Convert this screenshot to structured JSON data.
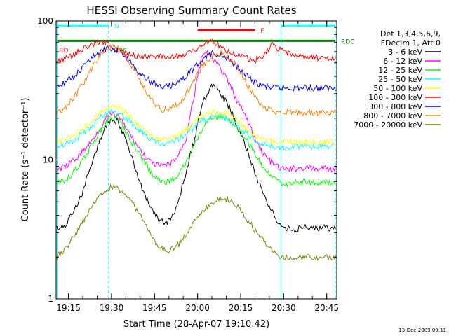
{
  "chart_data": {
    "type": "line",
    "title": "HESSI Observing Summary Count Rates",
    "xlabel": "Start Time (28-Apr-07 19:10:42)",
    "ylabel": "Count Rate (s⁻¹ detector⁻¹)",
    "y_scale": "log",
    "ylim": [
      1,
      100
    ],
    "xlim": [
      "19:10:42",
      "20:48:30"
    ],
    "x_ticks": [
      "19:15",
      "19:30",
      "19:45",
      "20:00",
      "20:15",
      "20:30",
      "20:45"
    ],
    "y_ticks": [
      "1",
      "10",
      "100"
    ],
    "legend_title": [
      "Det 1,3,4,5,6,9,",
      "FDecim 1, Att 0"
    ],
    "legend_position": "right",
    "footer": "13-Dec-2009 09:11",
    "time_axis": [
      "19:11",
      "19:14",
      "19:17",
      "19:20",
      "19:23",
      "19:26",
      "19:29",
      "19:32",
      "19:35",
      "19:38",
      "19:41",
      "19:44",
      "19:47",
      "19:50",
      "19:53",
      "19:56",
      "19:59",
      "20:02",
      "20:05",
      "20:08",
      "20:11",
      "20:14",
      "20:17",
      "20:20",
      "20:23",
      "20:26",
      "20:29",
      "20:32",
      "20:35",
      "20:38",
      "20:41",
      "20:44",
      "20:47"
    ],
    "series": [
      {
        "name": "3 - 6 keV",
        "color": "#000000",
        "values": [
          3.2,
          3.4,
          4.3,
          5.8,
          9,
          14,
          19,
          19,
          14,
          9,
          5.8,
          4.3,
          3.6,
          3.6,
          4.6,
          8,
          14,
          26,
          35,
          30,
          24,
          17,
          12,
          8,
          5.5,
          4.2,
          3.3,
          3.2,
          3.2,
          3.3,
          3.2,
          3.3,
          3.2
        ]
      },
      {
        "name": "6 - 12 keV",
        "color": "#ff00ff",
        "values": [
          8.5,
          9,
          10,
          11.5,
          13.5,
          17,
          21,
          21,
          17,
          13.5,
          11,
          9.5,
          9,
          9.2,
          10.5,
          14,
          30,
          60,
          55,
          45,
          35,
          26,
          20,
          14,
          11,
          9.5,
          8.6,
          8.6,
          8.7,
          8.8,
          8.6,
          8.7,
          8.6
        ]
      },
      {
        "name": "12 - 25 keV",
        "color": "#00ff00",
        "values": [
          6.8,
          7.2,
          8.2,
          10,
          12.5,
          16,
          20,
          20,
          16,
          12.5,
          10,
          8,
          7,
          7,
          7.8,
          9.5,
          13,
          17,
          20,
          20.5,
          19.5,
          17,
          14,
          11,
          8.5,
          7.5,
          6.8,
          6.8,
          6.9,
          7,
          6.8,
          6.9,
          6.8
        ]
      },
      {
        "name": "25 - 50 keV",
        "color": "#00ffff",
        "values": [
          12.5,
          13,
          14,
          15.5,
          17.5,
          20,
          22,
          22,
          20,
          17.5,
          15.5,
          14,
          13,
          13,
          14,
          15.5,
          17.5,
          19.5,
          20.5,
          20.5,
          19.5,
          17.5,
          15.5,
          14,
          13,
          12.5,
          12.5,
          12.5,
          12.5,
          12.5,
          12.5,
          12.5,
          12.5
        ]
      },
      {
        "name": "50 - 100 keV",
        "color": "#ffff00",
        "values": [
          13.5,
          14,
          15,
          16.5,
          19,
          22,
          24,
          24,
          22,
          19,
          16.5,
          15,
          14,
          14,
          15,
          16.5,
          19,
          21,
          22,
          22,
          21,
          19,
          16.5,
          15,
          14,
          13.5,
          13.5,
          13.5,
          13.5,
          13.5,
          13.5,
          13.5,
          13.5
        ]
      },
      {
        "name": "100 - 300 keV",
        "color": "#ff0000",
        "values": [
          50,
          53,
          58,
          63,
          68,
          70,
          68,
          62,
          58,
          56,
          55,
          55,
          55,
          55,
          56,
          58,
          62,
          68,
          72,
          66,
          60,
          56,
          54,
          52,
          56,
          68,
          62,
          58,
          56,
          55,
          54,
          54,
          54
        ]
      },
      {
        "name": "300 - 800 keV",
        "color": "#0000ff",
        "values": [
          34,
          36,
          40,
          46,
          53,
          60,
          64,
          62,
          55,
          47,
          40,
          36,
          34,
          34,
          36,
          40,
          46,
          53,
          58,
          58,
          53,
          46,
          40,
          36,
          34,
          33,
          33,
          33,
          33,
          33,
          33,
          33,
          33
        ]
      },
      {
        "name": "800 - 7000 keV",
        "color": "#ff8000",
        "values": [
          22,
          24,
          28,
          35,
          45,
          57,
          65,
          64,
          55,
          44,
          34,
          27,
          23,
          23,
          25,
          30,
          38,
          48,
          56,
          58,
          55,
          46,
          36,
          28,
          24,
          22.5,
          22,
          22,
          22,
          22,
          22,
          22,
          22
        ]
      },
      {
        "name": "7000 - 20000 keV",
        "color": "#808000",
        "values": [
          2,
          2.3,
          2.8,
          3.6,
          4.6,
          5.6,
          6.3,
          6.3,
          5.6,
          4.6,
          3.6,
          2.8,
          2.3,
          2.2,
          2.4,
          2.9,
          3.6,
          4.3,
          4.9,
          5.3,
          5.2,
          4.6,
          3.8,
          3.1,
          2.6,
          2.3,
          2,
          2,
          2,
          2,
          2,
          2,
          2
        ]
      }
    ],
    "status_bars": [
      {
        "label": "N",
        "color": "#00ffff",
        "y": 93,
        "start": "19:11",
        "end": "19:29"
      },
      {
        "label": "",
        "color": "#00ffff",
        "y": 93,
        "start": "20:29",
        "end": "20:48"
      },
      {
        "label": "F",
        "color": "#ff0000",
        "y": 86,
        "start": "20:00",
        "end": "20:20"
      },
      {
        "label": "RDC",
        "color": "#008000",
        "y": 72,
        "start": "19:11",
        "end": "20:48"
      }
    ],
    "extra_labels": [
      {
        "text": "RD",
        "color": "#ff0000",
        "x": "19:11",
        "y": 62
      },
      {
        "text": "RDC",
        "color": "#008000",
        "x": "19:30",
        "y": 62
      }
    ],
    "vertical_lines": [
      {
        "time": "19:11",
        "color": "#00ffff",
        "style": "solid"
      },
      {
        "time": "19:29",
        "color": "#00ffff",
        "style": "dashed"
      },
      {
        "time": "20:29",
        "color": "#00ffff",
        "style": "solid"
      },
      {
        "time": "20:48",
        "color": "#00ffff",
        "style": "dashed"
      }
    ]
  }
}
